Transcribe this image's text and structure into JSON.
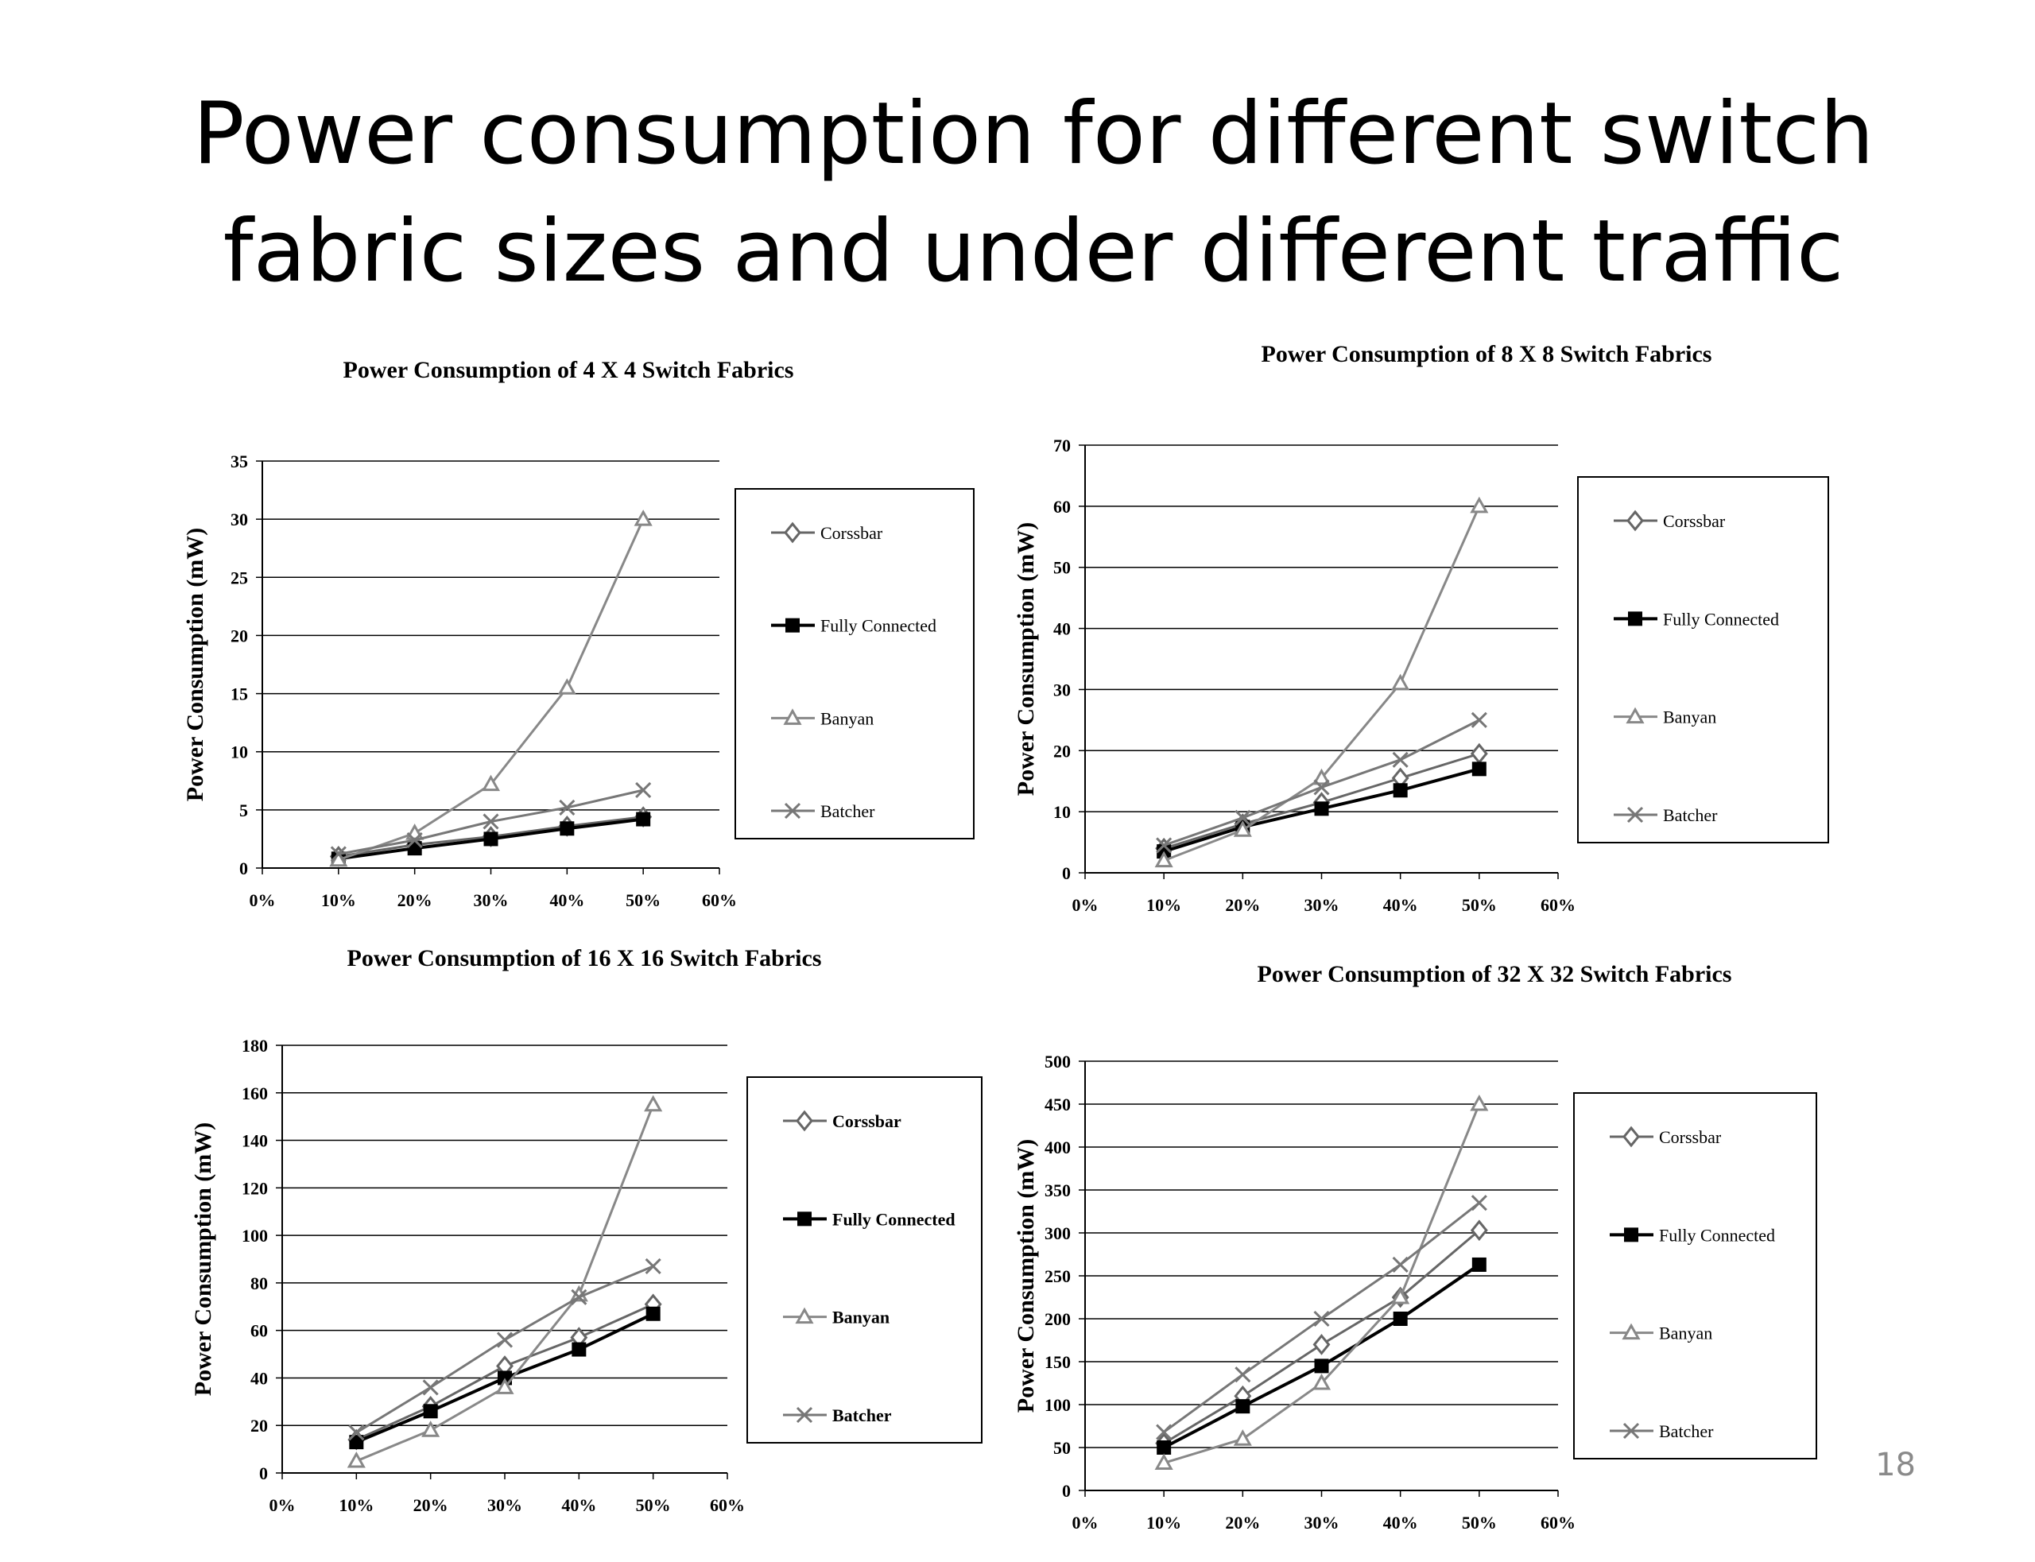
{
  "slide": {
    "title_line1": "Power consumption for different switch",
    "title_line2": "fabric sizes and under different traffic",
    "page_number": "18"
  },
  "colors": {
    "Corssbar": "#666666",
    "Fully Connected": "#000000",
    "Banyan": "#888888",
    "Batcher": "#777777",
    "grid": "#000000"
  },
  "chart_data": [
    {
      "type": "line",
      "title": "Power Consumption of 4 X 4 Switch Fabrics",
      "ylabel": "Power Consumption (mW)",
      "xlabel": "",
      "x": [
        "10%",
        "20%",
        "30%",
        "40%",
        "50%"
      ],
      "xticks": [
        "0%",
        "10%",
        "20%",
        "30%",
        "40%",
        "50%",
        "60%"
      ],
      "ylim": [
        0,
        35
      ],
      "yticks": [
        0,
        5,
        10,
        15,
        20,
        25,
        30,
        35
      ],
      "grid": true,
      "legend": "right",
      "series": [
        {
          "name": "Corssbar",
          "marker": "diamond",
          "values": [
            1.0,
            2.0,
            2.7,
            3.6,
            4.4
          ]
        },
        {
          "name": "Fully Connected",
          "marker": "square",
          "values": [
            0.8,
            1.7,
            2.5,
            3.4,
            4.2
          ]
        },
        {
          "name": "Banyan",
          "marker": "triangle",
          "values": [
            0.7,
            3.0,
            7.2,
            15.5,
            30.0
          ]
        },
        {
          "name": "Batcher",
          "marker": "x",
          "values": [
            1.2,
            2.4,
            4.0,
            5.2,
            6.7
          ]
        }
      ]
    },
    {
      "type": "line",
      "title": "Power Consumption of 8 X 8 Switch Fabrics",
      "ylabel": "Power Consumption (mW)",
      "xlabel": "",
      "x": [
        "10%",
        "20%",
        "30%",
        "40%",
        "50%"
      ],
      "xticks": [
        "0%",
        "10%",
        "20%",
        "30%",
        "40%",
        "50%",
        "60%"
      ],
      "ylim": [
        0,
        70
      ],
      "yticks": [
        0,
        10,
        20,
        30,
        40,
        50,
        60,
        70
      ],
      "grid": true,
      "legend": "right",
      "series": [
        {
          "name": "Corssbar",
          "marker": "diamond",
          "values": [
            4.0,
            8.0,
            11.5,
            15.5,
            19.5
          ]
        },
        {
          "name": "Fully Connected",
          "marker": "square",
          "values": [
            3.5,
            7.5,
            10.5,
            13.5,
            17.0
          ]
        },
        {
          "name": "Banyan",
          "marker": "triangle",
          "values": [
            2.0,
            7.0,
            15.5,
            31.0,
            60.0
          ]
        },
        {
          "name": "Batcher",
          "marker": "x",
          "values": [
            4.5,
            9.0,
            14.0,
            18.5,
            25.0
          ]
        }
      ]
    },
    {
      "type": "line",
      "title": "Power Consumption of 16 X 16 Switch Fabrics",
      "ylabel": "Power Consumption (mW)",
      "xlabel": "",
      "x": [
        "10%",
        "20%",
        "30%",
        "40%",
        "50%"
      ],
      "xticks": [
        "0%",
        "10%",
        "20%",
        "30%",
        "40%",
        "50%",
        "60%"
      ],
      "ylim": [
        0,
        180
      ],
      "yticks": [
        0,
        20,
        40,
        60,
        80,
        100,
        120,
        140,
        160,
        180
      ],
      "grid": true,
      "legend": "right",
      "series": [
        {
          "name": "Corssbar",
          "marker": "diamond",
          "values": [
            14,
            28,
            45,
            57,
            71
          ]
        },
        {
          "name": "Fully Connected",
          "marker": "square",
          "values": [
            13,
            26,
            40,
            52,
            67
          ]
        },
        {
          "name": "Banyan",
          "marker": "triangle",
          "values": [
            5,
            18,
            36,
            75,
            155
          ]
        },
        {
          "name": "Batcher",
          "marker": "x",
          "values": [
            17,
            36,
            56,
            74,
            87
          ]
        }
      ]
    },
    {
      "type": "line",
      "title": "Power Consumption of 32 X 32 Switch Fabrics",
      "ylabel": "Power Consumption (mW)",
      "xlabel": "",
      "x": [
        "10%",
        "20%",
        "30%",
        "40%",
        "50%"
      ],
      "xticks": [
        "0%",
        "10%",
        "20%",
        "30%",
        "40%",
        "50%",
        "60%"
      ],
      "ylim": [
        0,
        500
      ],
      "yticks": [
        0,
        50,
        100,
        150,
        200,
        250,
        300,
        350,
        400,
        450,
        500
      ],
      "grid": true,
      "legend": "right",
      "series": [
        {
          "name": "Corssbar",
          "marker": "diamond",
          "values": [
            55,
            110,
            170,
            225,
            303
          ]
        },
        {
          "name": "Fully Connected",
          "marker": "square",
          "values": [
            50,
            98,
            145,
            200,
            263
          ]
        },
        {
          "name": "Banyan",
          "marker": "triangle",
          "values": [
            32,
            60,
            125,
            225,
            450
          ]
        },
        {
          "name": "Batcher",
          "marker": "x",
          "values": [
            68,
            135,
            200,
            263,
            335
          ]
        }
      ]
    }
  ]
}
